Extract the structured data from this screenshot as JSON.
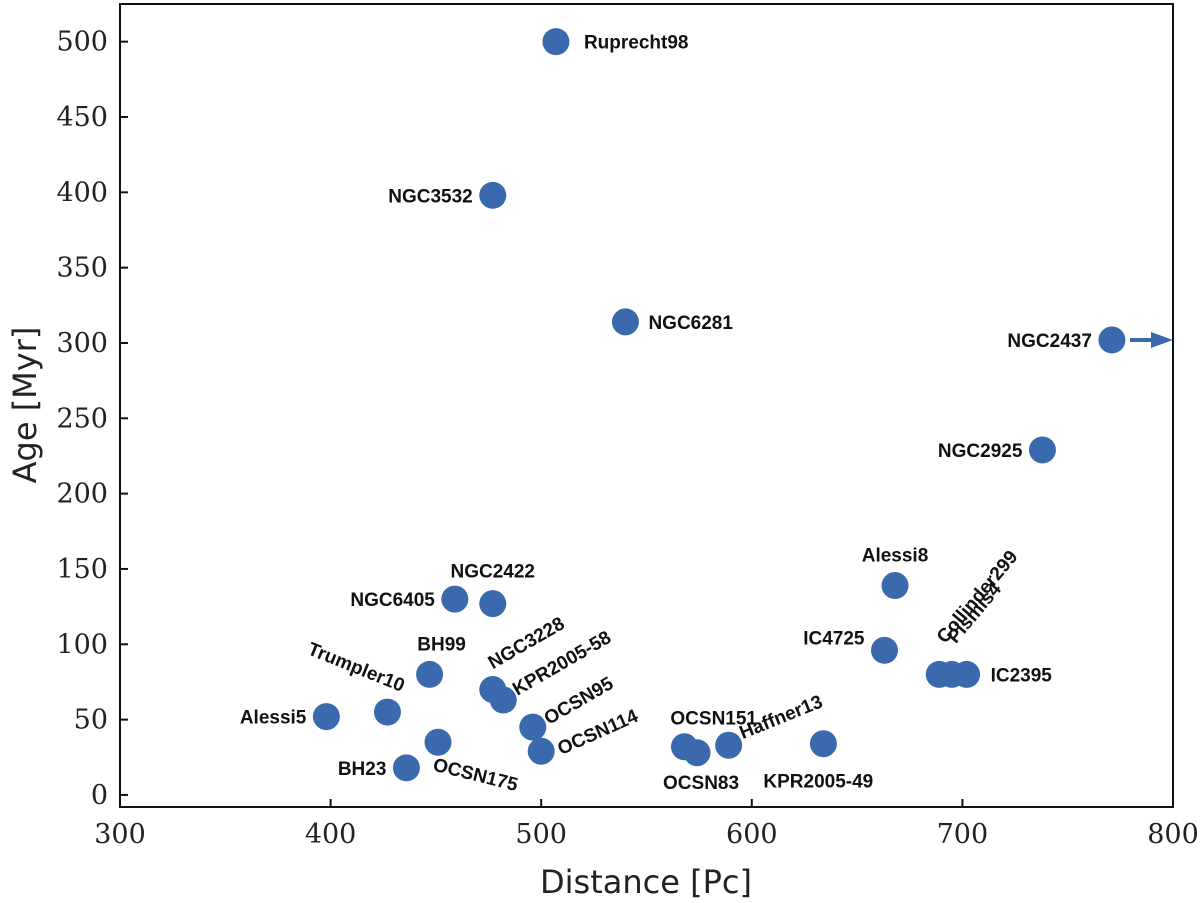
{
  "chart_data": {
    "type": "scatter",
    "xlabel": "Distance [Pc]",
    "ylabel": "Age [Myr]",
    "xlim": [
      300,
      800
    ],
    "ylim": [
      -8,
      525
    ],
    "xticks": [
      300,
      400,
      500,
      600,
      700,
      800
    ],
    "yticks": [
      0,
      50,
      100,
      150,
      200,
      250,
      300,
      350,
      400,
      450,
      500
    ],
    "marker_color": "#3a6aad",
    "points": [
      {
        "name": "Ruprecht98",
        "x": 507,
        "y": 500
      },
      {
        "name": "NGC3532",
        "x": 477,
        "y": 398
      },
      {
        "name": "NGC6281",
        "x": 540,
        "y": 314
      },
      {
        "name": "NGC2437",
        "x": 771,
        "y": 302,
        "arrow": "right"
      },
      {
        "name": "NGC2925",
        "x": 738,
        "y": 229
      },
      {
        "name": "Alessi8",
        "x": 668,
        "y": 139
      },
      {
        "name": "NGC6405",
        "x": 459,
        "y": 130
      },
      {
        "name": "NGC2422",
        "x": 477,
        "y": 127
      },
      {
        "name": "IC4725",
        "x": 663,
        "y": 96
      },
      {
        "name": "Collinder299",
        "x": 689,
        "y": 80
      },
      {
        "name": "Pismis4",
        "x": 695,
        "y": 80
      },
      {
        "name": "IC2395",
        "x": 702,
        "y": 80
      },
      {
        "name": "BH99",
        "x": 447,
        "y": 80
      },
      {
        "name": "NGC3228",
        "x": 477,
        "y": 70
      },
      {
        "name": "KPR2005-58",
        "x": 482,
        "y": 63
      },
      {
        "name": "Trumpler10",
        "x": 427,
        "y": 55
      },
      {
        "name": "Alessi5",
        "x": 398,
        "y": 52
      },
      {
        "name": "OCSN95",
        "x": 496,
        "y": 45
      },
      {
        "name": "OCSN175",
        "x": 451,
        "y": 35
      },
      {
        "name": "OCSN114",
        "x": 500,
        "y": 29
      },
      {
        "name": "BH23",
        "x": 436,
        "y": 18
      },
      {
        "name": "OCSN151",
        "x": 568,
        "y": 32
      },
      {
        "name": "OCSN83",
        "x": 574,
        "y": 28
      },
      {
        "name": "Haffner13",
        "x": 589,
        "y": 33
      },
      {
        "name": "KPR2005-49",
        "x": 634,
        "y": 34
      }
    ]
  }
}
